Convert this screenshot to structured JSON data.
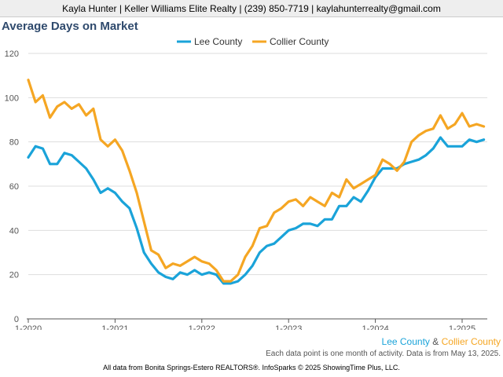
{
  "header": {
    "contact_line": "Kayla Hunter | Keller Williams Elite Realty | (239) 850-7719 | kaylahunterrealty@gmail.com"
  },
  "caption": {
    "series_a": "Lee County",
    "connector": "&",
    "series_b": "Collier County",
    "note": "Each data point is one month of activity. Data is from May 13, 2025."
  },
  "footer": {
    "source": "All data from Bonita Springs-Estero REALTORS®. InfoSparks © 2025 ShowingTime Plus, LLC."
  },
  "colors": {
    "lee": "#1aa3d9",
    "collier": "#f5a623",
    "title": "#2f4a6d",
    "axis": "#555555",
    "grid": "#dddddd"
  },
  "chart_data": {
    "type": "line",
    "title": "Average Days on Market",
    "xlabel": "",
    "ylabel": "",
    "ylim": [
      0,
      120
    ],
    "yticks": [
      0,
      20,
      40,
      60,
      80,
      100,
      120
    ],
    "xticks": [
      "1-2020",
      "1-2021",
      "1-2022",
      "1-2023",
      "1-2024",
      "1-2025"
    ],
    "legend_position": "top-center",
    "grid": "horizontal",
    "start_month": "1-2020",
    "series": [
      {
        "name": "Lee County",
        "color": "#1aa3d9",
        "values": [
          73,
          78,
          77,
          70,
          70,
          75,
          74,
          71,
          68,
          63,
          57,
          59,
          57,
          53,
          50,
          41,
          30,
          25,
          21,
          19,
          18,
          21,
          20,
          22,
          20,
          21,
          20,
          16,
          16,
          17,
          20,
          24,
          30,
          33,
          34,
          37,
          40,
          41,
          43,
          43,
          42,
          45,
          45,
          51,
          51,
          55,
          53,
          58,
          64,
          68,
          68,
          68,
          70,
          71,
          72,
          74,
          77,
          82,
          78,
          78,
          78,
          81,
          80,
          81
        ]
      },
      {
        "name": "Collier County",
        "color": "#f5a623",
        "values": [
          108,
          98,
          101,
          91,
          96,
          98,
          95,
          97,
          92,
          95,
          81,
          78,
          81,
          76,
          67,
          57,
          44,
          31,
          29,
          23,
          25,
          24,
          26,
          28,
          26,
          25,
          22,
          17,
          17,
          20,
          28,
          33,
          41,
          42,
          48,
          50,
          53,
          54,
          51,
          55,
          53,
          51,
          57,
          55,
          63,
          59,
          61,
          63,
          65,
          72,
          70,
          67,
          71,
          80,
          83,
          85,
          86,
          92,
          86,
          88,
          93,
          87,
          88,
          87
        ]
      }
    ]
  }
}
